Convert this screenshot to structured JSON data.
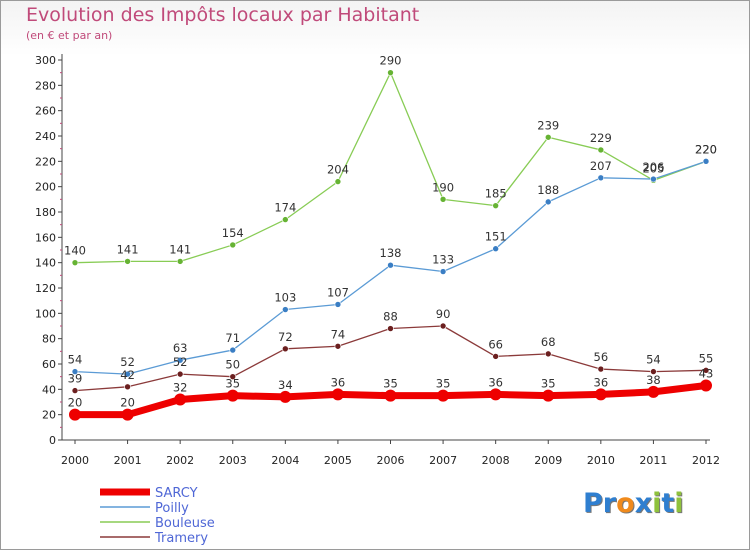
{
  "chart_data": {
    "type": "line",
    "title": "Evolution des Impôts locaux par Habitant",
    "subtitle": "(en € et par an)",
    "xlabel": "",
    "ylabel": "",
    "x": [
      "2000",
      "2001",
      "2002",
      "2003",
      "2004",
      "2005",
      "2006",
      "2007",
      "2008",
      "2009",
      "2010",
      "2011",
      "2012"
    ],
    "ylim": [
      0,
      300
    ],
    "yticks": [
      0,
      20,
      40,
      60,
      80,
      100,
      120,
      140,
      160,
      180,
      200,
      220,
      240,
      260,
      280,
      300
    ],
    "grid": false,
    "legend_position": "bottom-left",
    "series": [
      {
        "name": "Bouleuse",
        "color": "#88cc55",
        "marker": "#66b333",
        "width": 1.3,
        "values": [
          140,
          141,
          141,
          154,
          174,
          204,
          290,
          190,
          185,
          239,
          229,
          205,
          220
        ],
        "labels": [
          "140",
          "141",
          "141",
          "154",
          "174",
          "204",
          "290",
          "190",
          "185",
          "239",
          "229",
          "205",
          "220"
        ]
      },
      {
        "name": "Poilly",
        "color": "#5b9bd5",
        "marker": "#3a7ec4",
        "width": 1.3,
        "values": [
          54,
          52,
          63,
          71,
          103,
          107,
          138,
          133,
          151,
          188,
          207,
          206,
          220
        ],
        "labels": [
          "54",
          "52",
          "63",
          "71",
          "103",
          "107",
          "138",
          "133",
          "151",
          "188",
          "207",
          "206",
          "220"
        ]
      },
      {
        "name": "Tramery",
        "color": "#8b3a3a",
        "marker": "#6b1f1f",
        "width": 1.3,
        "values": [
          39,
          42,
          52,
          50,
          72,
          74,
          88,
          90,
          66,
          68,
          56,
          54,
          55
        ],
        "labels": [
          "39",
          "42",
          "52",
          "50",
          "72",
          "74",
          "88",
          "90",
          "66",
          "68",
          "56",
          "54",
          "55"
        ]
      },
      {
        "name": "SARCY",
        "color": "#ee0000",
        "marker": "#ee0000",
        "width": 7,
        "values": [
          20,
          20,
          32,
          35,
          34,
          36,
          35,
          35,
          36,
          35,
          36,
          38,
          43
        ],
        "labels": [
          "20",
          "20",
          "32",
          "35",
          "34",
          "36",
          "35",
          "35",
          "36",
          "35",
          "36",
          "38",
          "43"
        ]
      }
    ],
    "legend_order": [
      "SARCY",
      "Poilly",
      "Bouleuse",
      "Tramery"
    ]
  },
  "logo": {
    "text": "Proxiti",
    "letters": [
      "P",
      "r",
      "o",
      "x",
      "i",
      "t",
      "i"
    ],
    "colors": [
      "#2f7fd0",
      "#2f7fd0",
      "#f08a1c",
      "#2f7fd0",
      "#8fc23c",
      "#2f7fd0",
      "#8fc23c"
    ]
  }
}
